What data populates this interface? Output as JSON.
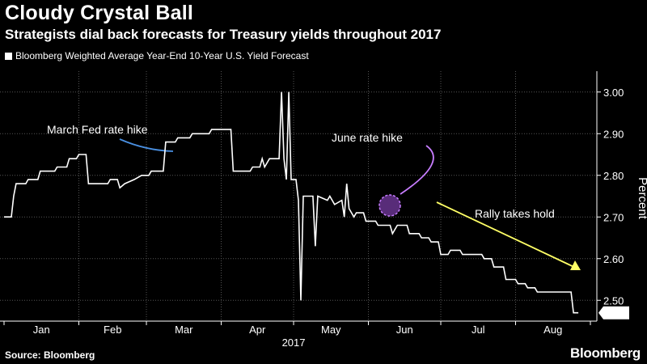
{
  "header": {
    "title": "Cloudy Crystal Ball",
    "subtitle": "Strategists dial back forecasts for Treasury yields throughout 2017"
  },
  "footer": {
    "source": "Source: Bloomberg",
    "brand": "Bloomberg"
  },
  "colors": {
    "background": "#000000",
    "line": "#ffffff",
    "march_annotation": "#4a90e2",
    "june_annotation": "#c77dff",
    "rally_annotation": "#ffff66"
  },
  "chart_data": {
    "type": "line",
    "title": "Cloudy Crystal Ball",
    "subtitle": "Strategists dial back forecasts for Treasury yields throughout 2017",
    "xlabel": "2017",
    "ylabel": "Percent",
    "ylim": [
      2.45,
      3.05
    ],
    "y_ticks": [
      "2.50",
      "2.60",
      "2.70",
      "2.80",
      "2.90",
      "3.00"
    ],
    "x_ticks": [
      "Jan",
      "Feb",
      "Mar",
      "Apr",
      "May",
      "Jun",
      "Jul",
      "Aug"
    ],
    "last_value_label": "2.47",
    "grid": true,
    "legend_position": "top-left",
    "series": [
      {
        "name": "Bloomberg Weighted Average Year-End 10-Year U.S. Yield Forecast",
        "points": [
          [
            "2017-01-01",
            2.7
          ],
          [
            "2017-01-04",
            2.7
          ],
          [
            "2017-01-05",
            2.75
          ],
          [
            "2017-01-06",
            2.78
          ],
          [
            "2017-01-10",
            2.78
          ],
          [
            "2017-01-11",
            2.79
          ],
          [
            "2017-01-15",
            2.79
          ],
          [
            "2017-01-16",
            2.81
          ],
          [
            "2017-01-22",
            2.81
          ],
          [
            "2017-01-23",
            2.82
          ],
          [
            "2017-01-27",
            2.82
          ],
          [
            "2017-01-28",
            2.84
          ],
          [
            "2017-01-31",
            2.84
          ],
          [
            "2017-02-01",
            2.85
          ],
          [
            "2017-02-04",
            2.85
          ],
          [
            "2017-02-05",
            2.78
          ],
          [
            "2017-02-13",
            2.78
          ],
          [
            "2017-02-14",
            2.79
          ],
          [
            "2017-02-17",
            2.79
          ],
          [
            "2017-02-18",
            2.77
          ],
          [
            "2017-02-20",
            2.78
          ],
          [
            "2017-02-24",
            2.79
          ],
          [
            "2017-02-27",
            2.8
          ],
          [
            "2017-03-02",
            2.8
          ],
          [
            "2017-03-03",
            2.81
          ],
          [
            "2017-03-08",
            2.81
          ],
          [
            "2017-03-09",
            2.88
          ],
          [
            "2017-03-13",
            2.88
          ],
          [
            "2017-03-14",
            2.89
          ],
          [
            "2017-03-19",
            2.89
          ],
          [
            "2017-03-20",
            2.9
          ],
          [
            "2017-03-27",
            2.9
          ],
          [
            "2017-03-28",
            2.91
          ],
          [
            "2017-04-05",
            2.91
          ],
          [
            "2017-04-06",
            2.81
          ],
          [
            "2017-04-13",
            2.81
          ],
          [
            "2017-04-14",
            2.82
          ],
          [
            "2017-04-17",
            2.82
          ],
          [
            "2017-04-18",
            2.84
          ],
          [
            "2017-04-19",
            2.82
          ],
          [
            "2017-04-21",
            2.84
          ],
          [
            "2017-04-25",
            2.84
          ],
          [
            "2017-04-26",
            3.0
          ],
          [
            "2017-04-27",
            2.84
          ],
          [
            "2017-04-28",
            2.79
          ],
          [
            "2017-04-29",
            3.0
          ],
          [
            "2017-04-30",
            2.79
          ],
          [
            "2017-05-02",
            2.79
          ],
          [
            "2017-05-03",
            2.74
          ],
          [
            "2017-05-04",
            2.5
          ],
          [
            "2017-05-05",
            2.75
          ],
          [
            "2017-05-08",
            2.75
          ],
          [
            "2017-05-09",
            2.75
          ],
          [
            "2017-05-10",
            2.63
          ],
          [
            "2017-05-11",
            2.75
          ],
          [
            "2017-05-15",
            2.74
          ],
          [
            "2017-05-16",
            2.75
          ],
          [
            "2017-05-18",
            2.73
          ],
          [
            "2017-05-21",
            2.74
          ],
          [
            "2017-05-22",
            2.7
          ],
          [
            "2017-05-23",
            2.78
          ],
          [
            "2017-05-24",
            2.72
          ],
          [
            "2017-05-26",
            2.7
          ],
          [
            "2017-05-27",
            2.71
          ],
          [
            "2017-05-30",
            2.71
          ],
          [
            "2017-05-31",
            2.69
          ],
          [
            "2017-06-04",
            2.69
          ],
          [
            "2017-06-05",
            2.68
          ],
          [
            "2017-06-10",
            2.68
          ],
          [
            "2017-06-11",
            2.66
          ],
          [
            "2017-06-13",
            2.68
          ],
          [
            "2017-06-17",
            2.68
          ],
          [
            "2017-06-18",
            2.66
          ],
          [
            "2017-06-22",
            2.66
          ],
          [
            "2017-06-23",
            2.65
          ],
          [
            "2017-06-26",
            2.65
          ],
          [
            "2017-06-27",
            2.64
          ],
          [
            "2017-06-30",
            2.64
          ],
          [
            "2017-07-01",
            2.61
          ],
          [
            "2017-07-04",
            2.61
          ],
          [
            "2017-07-05",
            2.62
          ],
          [
            "2017-07-09",
            2.62
          ],
          [
            "2017-07-10",
            2.61
          ],
          [
            "2017-07-18",
            2.61
          ],
          [
            "2017-07-19",
            2.6
          ],
          [
            "2017-07-22",
            2.6
          ],
          [
            "2017-07-23",
            2.58
          ],
          [
            "2017-07-27",
            2.58
          ],
          [
            "2017-07-28",
            2.55
          ],
          [
            "2017-08-01",
            2.55
          ],
          [
            "2017-08-02",
            2.54
          ],
          [
            "2017-08-05",
            2.54
          ],
          [
            "2017-08-06",
            2.53
          ],
          [
            "2017-08-09",
            2.53
          ],
          [
            "2017-08-10",
            2.52
          ],
          [
            "2017-08-24",
            2.52
          ],
          [
            "2017-08-25",
            2.47
          ],
          [
            "2017-08-27",
            2.47
          ]
        ]
      }
    ],
    "annotations": [
      {
        "id": "march",
        "text": "March Fed rate hike",
        "date": "2017-03-15",
        "value": 2.83
      },
      {
        "id": "june",
        "text": "June rate hike",
        "date": "2017-05-28",
        "value": 2.7
      },
      {
        "id": "rally",
        "text": "Rally takes hold"
      }
    ]
  }
}
